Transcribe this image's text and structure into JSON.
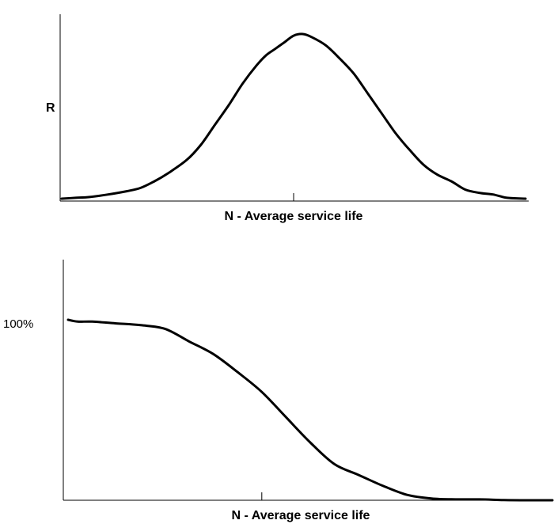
{
  "chart_data": [
    {
      "type": "line",
      "title": "",
      "xlabel": "N - Average service life",
      "ylabel": "R",
      "xlim": [
        0,
        100
      ],
      "ylim": [
        0,
        100
      ],
      "grid": false,
      "x_tick_at": 50,
      "series": [
        {
          "x": [
            0,
            3,
            6,
            10,
            14,
            17,
            20,
            23,
            27,
            30,
            33,
            36,
            39,
            42,
            44,
            46,
            48,
            50,
            52,
            54,
            57,
            60,
            63,
            66,
            69,
            72,
            75,
            78,
            81,
            84,
            87,
            90,
            93,
            96,
            100
          ],
          "values": [
            0.5,
            1,
            1.5,
            3,
            5,
            7,
            11,
            16,
            24,
            33,
            45,
            57,
            70,
            81,
            87,
            91,
            95,
            99,
            100,
            98,
            93,
            85,
            76,
            64,
            52,
            40,
            30,
            21,
            15,
            11,
            6,
            4,
            3,
            1,
            0.5
          ],
          "color": "#000000"
        }
      ]
    },
    {
      "type": "line",
      "title": "",
      "xlabel": "N - Average service life",
      "ylabel": "100%",
      "xlim": [
        0,
        100
      ],
      "ylim": [
        0,
        100
      ],
      "grid": false,
      "x_tick_at": 40,
      "series": [
        {
          "x": [
            0,
            2,
            5,
            10,
            15,
            20,
            25,
            30,
            35,
            40,
            45,
            50,
            55,
            60,
            65,
            70,
            75,
            80,
            85,
            90,
            95,
            100
          ],
          "values": [
            100,
            99,
            99,
            98,
            97,
            95,
            88,
            81,
            71,
            60,
            46,
            32,
            20,
            14,
            8,
            3,
            1,
            0.5,
            0.5,
            0.1,
            0,
            0
          ],
          "color": "#000000"
        }
      ]
    }
  ]
}
